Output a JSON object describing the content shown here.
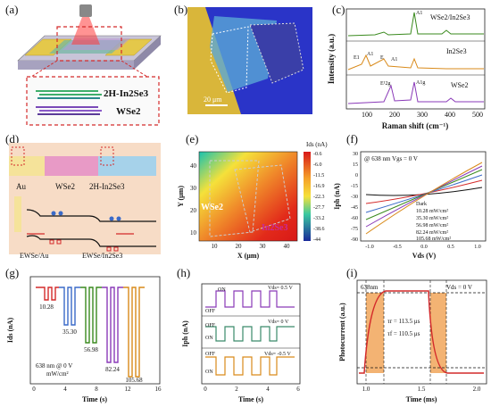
{
  "panels": {
    "a": {
      "label": "(a)",
      "lower_text": "2H-In2Se3",
      "lower_text2": "WSe2"
    },
    "b": {
      "label": "(b)",
      "scale_bar": "20 μm"
    },
    "c": {
      "label": "(c)",
      "ylabel": "Intensity (a.u.)",
      "xlabel": "Raman shift (cm⁻¹)",
      "xticks": [
        "100",
        "200",
        "300",
        "400",
        "500"
      ],
      "legend": [
        "WSe2/In2Se3",
        "In2Se3",
        "WSe2"
      ],
      "peak_labels": [
        "A1",
        "E1",
        "A1",
        "E",
        "A1",
        "E¹2g",
        "A1g"
      ]
    },
    "d": {
      "label": "(d)",
      "au": "Au",
      "wse2": "WSe2",
      "in2se3": "2H-In2Se3",
      "e_left": "EWSe/Au",
      "e_right": "EWSe/In2Se3"
    },
    "e": {
      "label": "(e)",
      "colorbar_title": "Ids (nA)",
      "colorbar_ticks": [
        "-0.6",
        "-6.0",
        "-11.5",
        "-16.9",
        "-22.3",
        "-27.7",
        "-33.2",
        "-38.6",
        "-44"
      ],
      "xlabel": "X (μm)",
      "ylabel": "Y (μm)",
      "xticks": [
        "10",
        "20",
        "30",
        "40"
      ],
      "yticks": [
        "10",
        "20",
        "30",
        "40"
      ],
      "region_wse2": "WSe2",
      "region_in2se3": "In2Se3"
    },
    "f": {
      "label": "(f)",
      "header": "@ 638 nm  Vgs = 0 V",
      "ylabel": "Iph (nA)",
      "xlabel": "Vds (V)",
      "xticks": [
        "-1.0",
        "-0.5",
        "0.0",
        "0.5",
        "1.0"
      ],
      "yticks": [
        "30",
        "15",
        "0",
        "-15",
        "-30",
        "-45",
        "-60",
        "-75",
        "-90"
      ],
      "legend": [
        "Dark",
        "10.28 mW/cm²",
        "35.30 mW/cm²",
        "56.98 mW/cm²",
        "82.24 mW/cm²",
        "105.68 mW/cm²"
      ]
    },
    "g": {
      "label": "(g)",
      "ylabel": "Ids (nA)",
      "xlabel": "Time (s)",
      "xticks": [
        "0",
        "4",
        "8",
        "12",
        "16"
      ],
      "caption1": "638 nm @ 0 V",
      "caption2": "mW/cm²",
      "levels": [
        "10.28",
        "35.30",
        "56.98",
        "82.24",
        "105.68"
      ]
    },
    "h": {
      "label": "(h)",
      "ylabel": "Iph (nA)",
      "xlabel": "Time (s)",
      "xticks": [
        "0",
        "2",
        "4",
        "6"
      ],
      "on": "ON",
      "off": "OFF",
      "v1": "Vds= 0.5 V",
      "v2": "Vds= 0 V",
      "v3": "Vds= -0.5 V"
    },
    "i": {
      "label": "(i)",
      "ylabel": "Photocurrent (a.u.)",
      "xlabel": "Time (ms)",
      "xticks": [
        "1.0",
        "1.5",
        "2.0"
      ],
      "laser": "638nm",
      "vds": "Vds = 0 V",
      "tau_r": "τr = 113.5 μs",
      "tau_f": "τf = 110.5 μs"
    }
  },
  "colors": {
    "green": "#3a8a1e",
    "orange": "#d98a1a",
    "purple": "#8a3ab8",
    "red": "#d42a2a",
    "blue": "#3a6ac8"
  }
}
